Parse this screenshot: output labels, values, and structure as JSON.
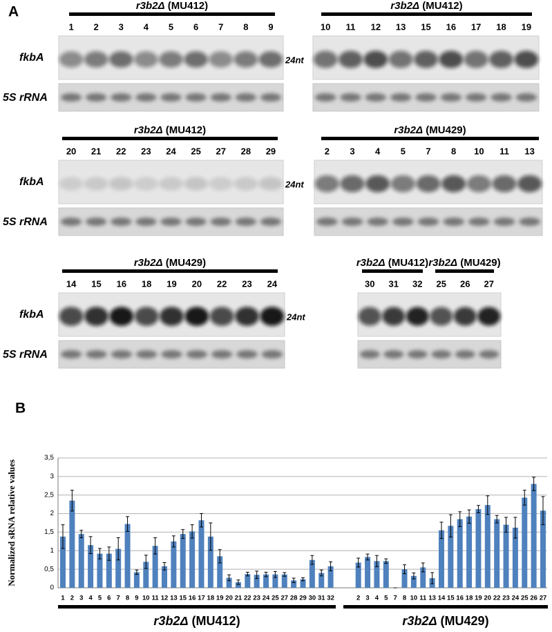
{
  "panel_a": {
    "label": "A",
    "blots": [
      {
        "groups": [
          {
            "strain": "r3b2Δ",
            "line": "(MU412)",
            "lanes": [
              "1",
              "2",
              "3",
              "4",
              "5",
              "6",
              "7",
              "8",
              "9"
            ]
          }
        ],
        "gene_label": "fkbA",
        "rrna_label": "5S rRNA",
        "size_label": "24nt"
      },
      {
        "groups": [
          {
            "strain": "r3b2Δ",
            "line": "(MU412)",
            "lanes": [
              "10",
              "11",
              "12",
              "13",
              "15",
              "16",
              "17",
              "18",
              "19"
            ]
          }
        ]
      },
      {
        "groups": [
          {
            "strain": "r3b2Δ",
            "line": "(MU412)",
            "lanes": [
              "20",
              "21",
              "22",
              "23",
              "24",
              "25",
              "27",
              "28",
              "29"
            ]
          }
        ],
        "gene_label": "fkbA",
        "rrna_label": "5S rRNA",
        "size_label": "24nt"
      },
      {
        "groups": [
          {
            "strain": "r3b2Δ",
            "line": "(MU429)",
            "lanes": [
              "2",
              "3",
              "4",
              "5",
              "7",
              "8",
              "10",
              "11",
              "13"
            ]
          }
        ]
      },
      {
        "groups": [
          {
            "strain": "r3b2Δ",
            "line": "(MU429)",
            "lanes": [
              "14",
              "15",
              "16",
              "18",
              "19",
              "20",
              "22",
              "23",
              "24"
            ]
          }
        ],
        "gene_label": "fkbA",
        "rrna_label": "5S rRNA",
        "size_label": "24nt"
      },
      {
        "groups": [
          {
            "strain": "r3b2Δ",
            "line": "(MU412)",
            "lanes": [
              "30",
              "31",
              "32"
            ]
          },
          {
            "strain": "r3b2Δ",
            "line": "(MU429)",
            "lanes": [
              "25",
              "26",
              "27"
            ]
          }
        ]
      }
    ]
  },
  "chart_data": {
    "type": "bar",
    "panel_label": "B",
    "y_label": "Normalized sRNA relative values",
    "categories": [
      "1",
      "2",
      "3",
      "4",
      "5",
      "6",
      "7",
      "8",
      "9",
      "10",
      "11",
      "12",
      "13",
      "15",
      "16",
      "17",
      "18",
      "19",
      "20",
      "21",
      "22",
      "23",
      "24",
      "25",
      "27",
      "28",
      "29",
      "30",
      "31",
      "32",
      null,
      null,
      "2",
      "3",
      "4",
      "5",
      "7",
      "8",
      "10",
      "11",
      "13",
      "14",
      "15",
      "16",
      "18",
      "19",
      "20",
      "22",
      "23",
      "24",
      "25",
      "26",
      "27"
    ],
    "values": [
      1.38,
      2.35,
      1.45,
      1.15,
      0.92,
      0.92,
      1.05,
      1.72,
      0.42,
      0.7,
      1.13,
      0.58,
      1.25,
      1.45,
      1.52,
      1.82,
      1.38,
      0.85,
      0.27,
      0.15,
      0.37,
      0.35,
      0.36,
      0.36,
      0.36,
      0.2,
      0.23,
      0.75,
      0.4,
      0.58,
      null,
      null,
      0.68,
      0.83,
      0.72,
      0.72,
      0,
      0.5,
      0.32,
      0.55,
      0.26,
      1.55,
      1.67,
      1.85,
      1.92,
      2.12,
      2.23,
      1.85,
      1.7,
      1.62,
      2.43,
      2.8,
      2.08
    ],
    "errors": [
      0.32,
      0.28,
      0.1,
      0.23,
      0.14,
      0.18,
      0.3,
      0.2,
      0.06,
      0.18,
      0.22,
      0.1,
      0.15,
      0.12,
      0.18,
      0.18,
      0.37,
      0.18,
      0.08,
      0.06,
      0.05,
      0.1,
      0.06,
      0.08,
      0.05,
      0.06,
      0.04,
      0.12,
      0.08,
      0.12,
      null,
      null,
      0.12,
      0.08,
      0.15,
      0.06,
      0,
      0.12,
      0.08,
      0.12,
      0.15,
      0.22,
      0.3,
      0.2,
      0.18,
      0.1,
      0.25,
      0.1,
      0.2,
      0.28,
      0.2,
      0.18,
      0.38
    ],
    "color": "#4f81bd",
    "ylim": [
      0,
      3.5
    ],
    "yticks": [
      0,
      {
        "value": 0.5,
        "label": "0,5"
      },
      1,
      {
        "value": 1.5,
        "label": "1,5"
      },
      2,
      {
        "value": 2.5,
        "label": "2,5"
      },
      3,
      {
        "value": 3.5,
        "label": "3,5"
      }
    ],
    "grid": true,
    "groups": [
      {
        "strain": "r3b2Δ",
        "line": "(MU412)"
      },
      {
        "strain": "r3b2Δ",
        "line": "(MU429)"
      }
    ]
  }
}
